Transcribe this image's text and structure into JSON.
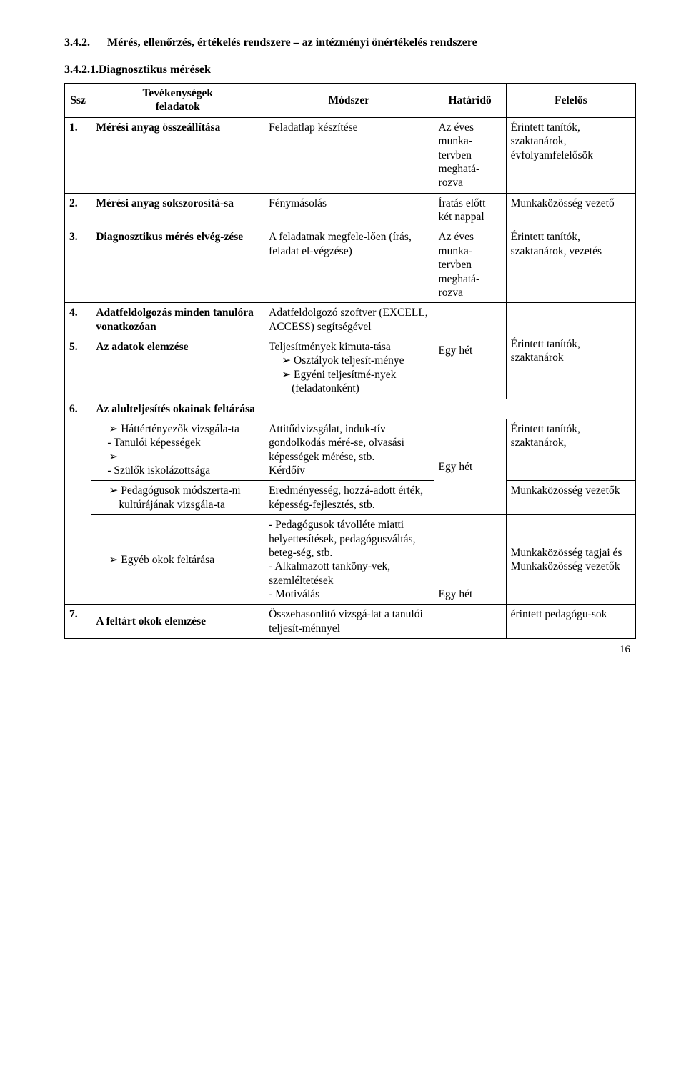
{
  "page_number": "16",
  "h1": {
    "number": "3.4.2.",
    "text": "Mérés, ellenőrzés, értékelés rendszere – az intézményi önértékelés rendszere"
  },
  "h2": "3.4.2.1.Diagnosztikus mérések",
  "table": {
    "header": {
      "ssz": "Ssz",
      "tev_line1": "Tevékenységek",
      "tev_line2": "feladatok",
      "modszer": "Módszer",
      "hatarido": "Határidő",
      "felelos": "Felelős"
    },
    "rows": {
      "r1": {
        "num": "1.",
        "tev": "Mérési anyag összeállítása",
        "modszer": "Feladatlap készítése",
        "hatarido": "Az éves munka-tervben meghatá-rozva",
        "felelos": "Érintett tanítók, szaktanárok, évfolyamfelelősök"
      },
      "r2": {
        "num": "2.",
        "tev": "Mérési anyag sokszorosítá-sa",
        "modszer": "Fénymásolás",
        "hatarido": "Íratás előtt két nappal",
        "felelos": "Munkaközösség vezető"
      },
      "r3": {
        "num": "3.",
        "tev": "Diagnosztikus mérés elvég-zése",
        "modszer": "A feladatnak megfele-lően (írás, feladat el-végzése)",
        "hatarido": "Az éves munka-tervben meghatá-rozva",
        "felelos": "Érintett tanítók, szaktanárok, vezetés"
      },
      "r4": {
        "num": "4.",
        "tev": "Adatfeldolgozás minden tanulóra vonatkozóan",
        "modszer": "Adatfeldolgozó szoftver (EXCELL, ACCESS) segítségével"
      },
      "r5": {
        "num": "5.",
        "tev": "Az adatok elemzése",
        "modszer_lead": "Teljesítmények kimuta-tása",
        "modszer_b1": "Osztályok teljesít-ménye",
        "modszer_b2": "Egyéni teljesítmé-nyek (feladatonként)",
        "hatarido": "Egy hét",
        "felelos": "Érintett tanítók, szaktanárok"
      },
      "r6": {
        "num": "6.",
        "title": "Az alulteljesítés okainak feltárása",
        "a_tev_b1": "Háttértényezők vizsgála-ta",
        "a_tev_sub1": "- Tanulói képességek",
        "a_tev_sub2": "- Szülők iskolázottsága",
        "a_mod": "Attitűdvizsgálat, induk-tív gondolkodás méré-se, olvasási képességek mérése, stb.\nKérdőív",
        "a_hat": "Egy hét",
        "a_fel": "Érintett tanítók, szaktanárok,",
        "b_tev": "Pedagógusok módszerta-ni kultúrájának vizsgála-ta",
        "b_mod": "Eredményesség, hozzá-adott érték, képesség-fejlesztés, stb.",
        "b_fel": "Munkaközösség vezetők",
        "c_tev": "Egyéb okok feltárása",
        "c_mod": "- Pedagógusok távolléte miatti helyettesítések, pedagógusváltás, beteg-ség, stb.\n- Alkalmazott tanköny-vek, szemléltetések\n- Motiválás",
        "c_hat": "Egy hét",
        "c_fel": "Munkaközösség tagjai és Munkaközösség vezetők"
      },
      "r7": {
        "num": "7.",
        "tev": "A feltárt okok elemzése",
        "modszer": "Összehasonlító vizsgá-lat a tanulói teljesít-ménnyel",
        "felelos": "érintett pedagógu-sok"
      }
    }
  }
}
